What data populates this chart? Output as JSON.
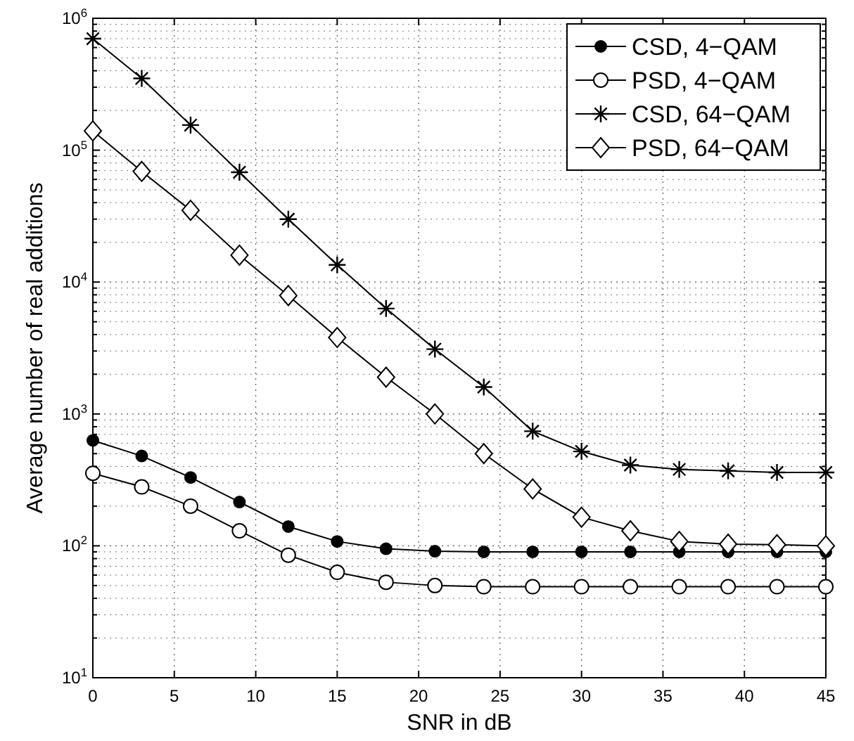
{
  "chart_data": {
    "type": "line",
    "xlabel": "SNR in dB",
    "ylabel": "Average number of real additions",
    "x": [
      0,
      3,
      6,
      9,
      12,
      15,
      18,
      21,
      24,
      27,
      30,
      33,
      36,
      39,
      42,
      45
    ],
    "series": [
      {
        "name": "CSD, 4−QAM",
        "color": "#000000",
        "marker": "circle",
        "values": [
          630,
          480,
          330,
          215,
          140,
          108,
          95,
          91,
          90,
          90,
          90,
          90,
          90,
          90,
          90,
          90
        ]
      },
      {
        "name": "PSD, 4−QAM",
        "color": "#000000",
        "marker": "circle",
        "values": [
          355,
          280,
          200,
          130,
          85,
          63,
          53,
          50,
          49,
          49,
          49,
          49,
          49,
          49,
          49,
          49
        ]
      },
      {
        "name": "CSD, 64−QAM",
        "color": "#000000",
        "marker": "cross",
        "values": [
          700000,
          350000,
          155000,
          68000,
          30000,
          13500,
          6300,
          3100,
          1600,
          740,
          520,
          410,
          380,
          370,
          360,
          360
        ]
      },
      {
        "name": "PSD, 64−QAM",
        "color": "#000000",
        "marker": "diamond",
        "values": [
          140000,
          69000,
          35000,
          16000,
          7900,
          3800,
          1900,
          1000,
          500,
          270,
          165,
          130,
          108,
          103,
          102,
          100
        ]
      }
    ],
    "log": "y",
    "grid": true,
    "legend": "top right",
    "line_style": "solid",
    "xlim": [
      0,
      45
    ],
    "xticks": [
      0,
      5,
      10,
      15,
      20,
      25,
      30,
      35,
      40,
      45
    ],
    "ylim": [
      10,
      1000000
    ],
    "yticks": [
      {
        "value": 10,
        "label": "10$^{1}$"
      },
      {
        "value": 100,
        "label": "10$^{2}$"
      },
      {
        "value": 1000,
        "label": "10$^{3}$"
      },
      {
        "value": 10000,
        "label": "10$^{4}$"
      },
      {
        "value": 100000,
        "label": "10$^{5}$"
      },
      {
        "value": 1000000,
        "label": "10$^{6}$"
      }
    ]
  }
}
